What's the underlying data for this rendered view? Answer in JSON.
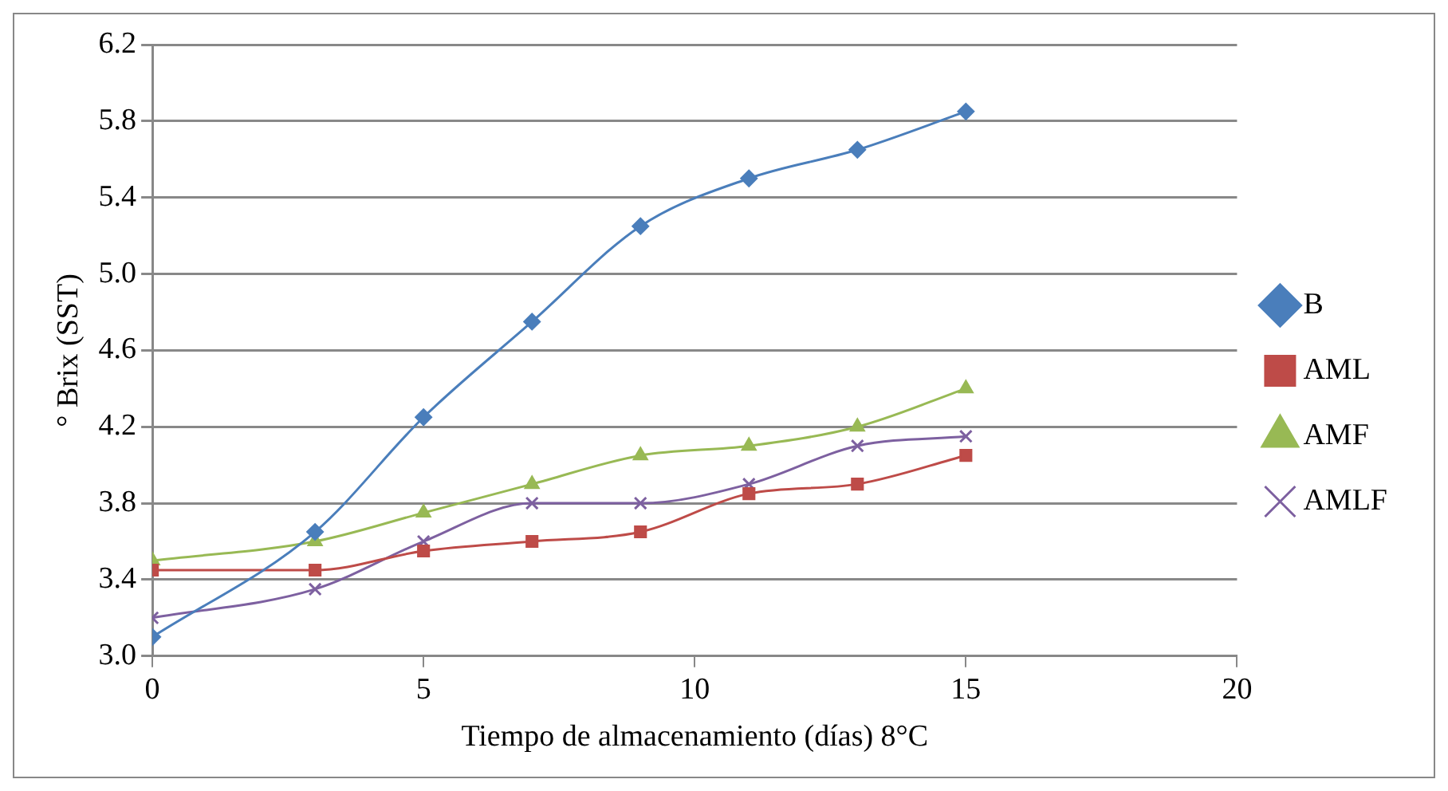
{
  "chart_data": {
    "type": "line",
    "xlabel": "Tiempo de almacenamiento (días) 8°C",
    "ylabel": "° Brix (SST)",
    "x": [
      0,
      3,
      5,
      7,
      9,
      11,
      13,
      15
    ],
    "series": [
      {
        "name": "B",
        "color": "#4a7ebb",
        "marker": "diamond",
        "values": [
          3.1,
          3.65,
          4.25,
          4.75,
          5.25,
          5.5,
          5.65,
          5.85
        ]
      },
      {
        "name": "AML",
        "color": "#be4b48",
        "marker": "square",
        "values": [
          3.45,
          3.45,
          3.55,
          3.6,
          3.65,
          3.85,
          3.9,
          4.05
        ]
      },
      {
        "name": "AMF",
        "color": "#98b954",
        "marker": "triangle",
        "values": [
          3.5,
          3.6,
          3.75,
          3.9,
          4.05,
          4.1,
          4.2,
          4.4
        ]
      },
      {
        "name": "AMLF",
        "color": "#7d60a0",
        "marker": "cross",
        "values": [
          3.2,
          3.35,
          3.6,
          3.8,
          3.8,
          3.9,
          4.1,
          4.15
        ]
      }
    ],
    "xlim": [
      0,
      20
    ],
    "xticks": [
      0,
      5,
      10,
      15,
      20
    ],
    "ylim": [
      3,
      6.2
    ],
    "yticks": [
      {
        "value": 3,
        "label": "3.0"
      },
      {
        "value": 3.4,
        "label": "3.4"
      },
      {
        "value": 3.8,
        "label": "3.8"
      },
      {
        "value": 4.2,
        "label": "4.2"
      },
      {
        "value": 4.6,
        "label": "4.6"
      },
      {
        "value": 5,
        "label": "5.0"
      },
      {
        "value": 5.4,
        "label": "5.4"
      },
      {
        "value": 5.8,
        "label": "5.8"
      },
      {
        "value": 6.2,
        "label": "6.2"
      }
    ],
    "grid": "y",
    "legend": "right"
  }
}
